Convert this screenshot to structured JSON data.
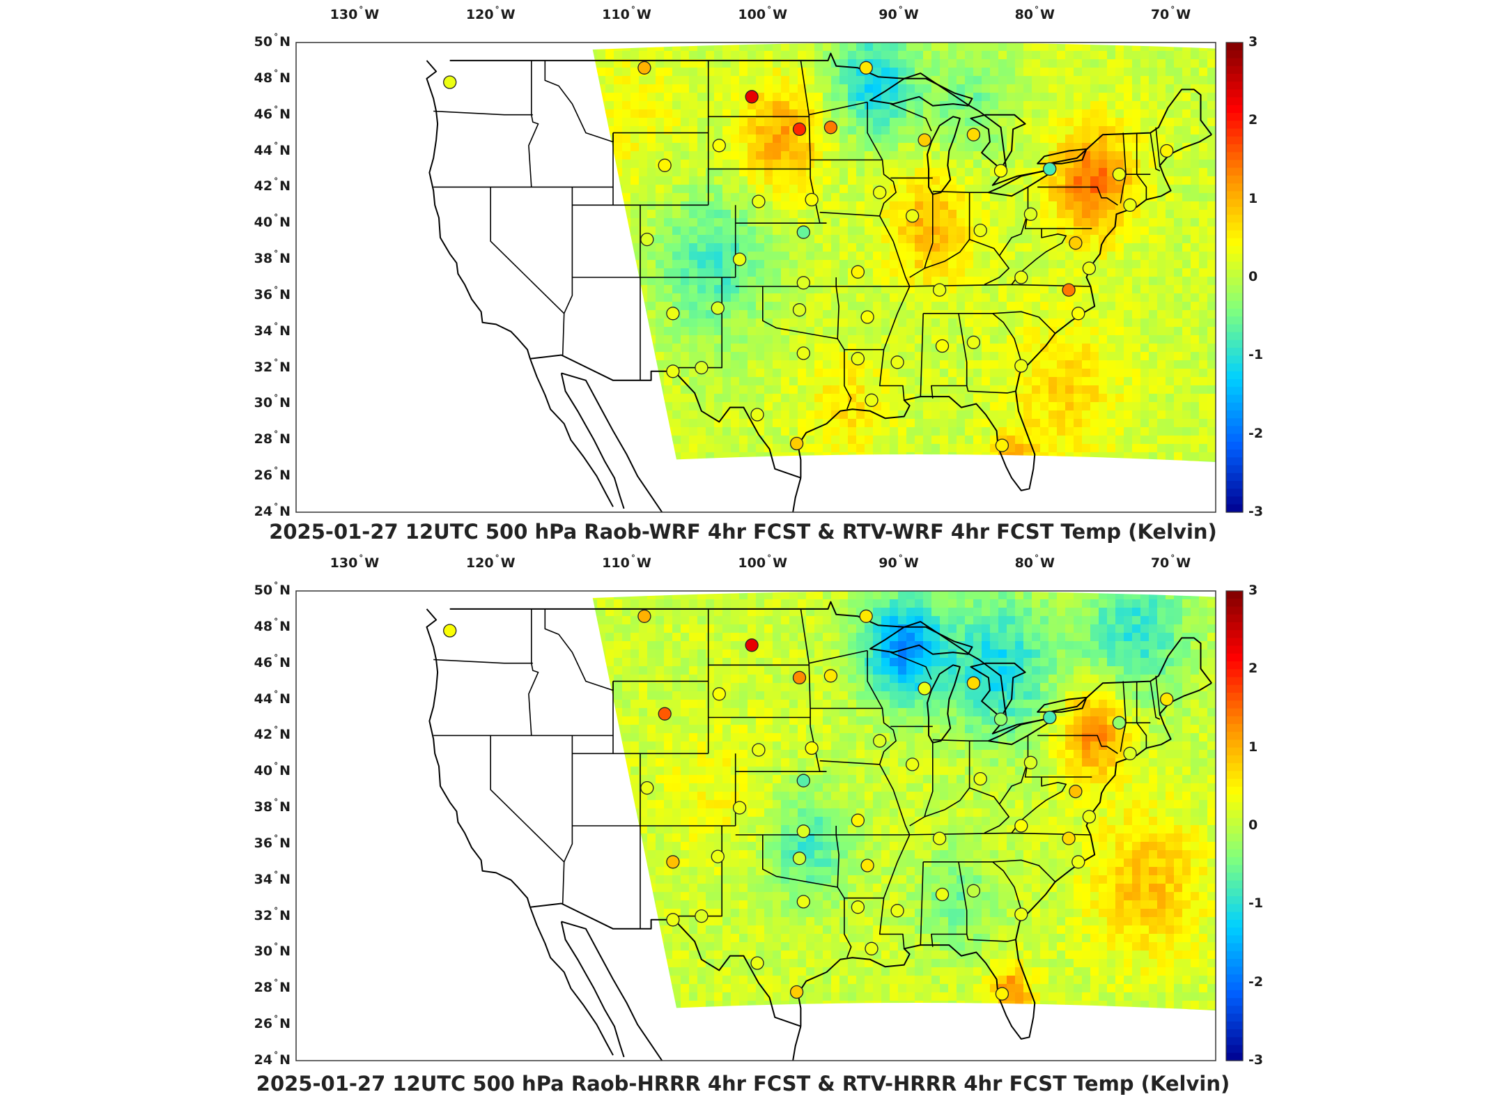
{
  "lon_labels": [
    {
      "deg": "130",
      "hemi": "W"
    },
    {
      "deg": "120",
      "hemi": "W"
    },
    {
      "deg": "110",
      "hemi": "W"
    },
    {
      "deg": "100",
      "hemi": "W"
    },
    {
      "deg": "90",
      "hemi": "W"
    },
    {
      "deg": "80",
      "hemi": "W"
    },
    {
      "deg": "70",
      "hemi": "W"
    }
  ],
  "lat_labels": [
    {
      "deg": "50",
      "hemi": "N"
    },
    {
      "deg": "48",
      "hemi": "N"
    },
    {
      "deg": "46",
      "hemi": "N"
    },
    {
      "deg": "44",
      "hemi": "N"
    },
    {
      "deg": "42",
      "hemi": "N"
    },
    {
      "deg": "40",
      "hemi": "N"
    },
    {
      "deg": "38",
      "hemi": "N"
    },
    {
      "deg": "36",
      "hemi": "N"
    },
    {
      "deg": "34",
      "hemi": "N"
    },
    {
      "deg": "32",
      "hemi": "N"
    },
    {
      "deg": "30",
      "hemi": "N"
    },
    {
      "deg": "28",
      "hemi": "N"
    },
    {
      "deg": "26",
      "hemi": "N"
    },
    {
      "deg": "24",
      "hemi": "N"
    }
  ],
  "colorbar": {
    "ticks": [
      "3",
      "2",
      "1",
      "0",
      "-1",
      "-2",
      "-3"
    ],
    "colors": [
      "#7f0000",
      "#ff0000",
      "#ff8c00",
      "#ffff00",
      "#7fff7f",
      "#00d0ff",
      "#0060ff",
      "#00008f"
    ]
  },
  "panels": [
    {
      "title": "2025-01-27 12UTC 500 hPa Raob-WRF 4hr FCST & RTV-WRF 4hr FCST Temp (Kelvin)",
      "field_tone": "wrf"
    },
    {
      "title": "2025-01-27 12UTC 500 hPa Raob-HRRR 4hr FCST & RTV-HRRR 4hr FCST Temp (Kelvin)",
      "field_tone": "hrrr"
    }
  ]
}
